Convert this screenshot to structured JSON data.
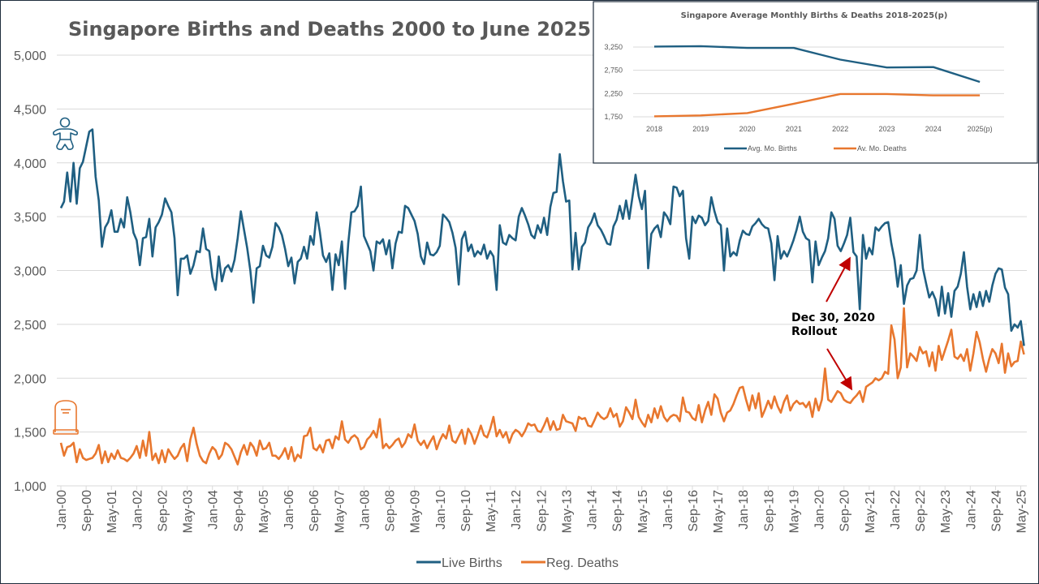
{
  "chart_data": [
    {
      "type": "line",
      "title": "Singapore Births and Deaths 2000 to June 2025",
      "xlabel": "",
      "ylabel": "",
      "ylim": [
        1000,
        5000
      ],
      "yticks": [
        "1,000",
        "1,500",
        "2,000",
        "2,500",
        "3,000",
        "3,500",
        "4,000",
        "4,500",
        "5,000"
      ],
      "ytick_values": [
        1000,
        1500,
        2000,
        2500,
        3000,
        3500,
        4000,
        4500,
        5000
      ],
      "x_start": "Jan-00",
      "x_end": "Jun-25",
      "x_frequency": "monthly",
      "xticks": [
        "Jan-00",
        "Sep-00",
        "May-01",
        "Jan-02",
        "Sep-02",
        "May-03",
        "Jan-04",
        "Sep-04",
        "May-05",
        "Jan-06",
        "Sep-06",
        "May-07",
        "Jan-08",
        "Sep-08",
        "May-09",
        "Jan-10",
        "Sep-10",
        "May-11",
        "Jan-12",
        "Sep-12",
        "May-13",
        "Jan-14",
        "Sep-14",
        "May-15",
        "Jan-16",
        "Sep-16",
        "May-17",
        "Jan-18",
        "Sep-18",
        "May-19",
        "Jan-20",
        "Sep-20",
        "May-21",
        "Jan-22",
        "Sep-22",
        "May-23",
        "Jan-24",
        "Sep-24",
        "May-25"
      ],
      "xtick_interval_months": 8,
      "grid": true,
      "legend_position": "bottom",
      "series": [
        {
          "name": "Live Births",
          "color": "#1f5f82",
          "values": [
            3580,
            3640,
            3910,
            3640,
            4000,
            3620,
            3950,
            4010,
            4150,
            4290,
            4310,
            3870,
            3650,
            3220,
            3400,
            3450,
            3560,
            3360,
            3360,
            3480,
            3400,
            3680,
            3540,
            3350,
            3280,
            3050,
            3300,
            3310,
            3480,
            3130,
            3400,
            3450,
            3520,
            3670,
            3600,
            3540,
            3300,
            2770,
            3110,
            3110,
            3140,
            2970,
            3050,
            3180,
            3170,
            3390,
            3200,
            3180,
            2940,
            2820,
            3130,
            2900,
            3020,
            3050,
            2990,
            3100,
            3300,
            3550,
            3380,
            3210,
            3000,
            2700,
            3020,
            3040,
            3230,
            3140,
            3120,
            3220,
            3440,
            3400,
            3330,
            3200,
            3040,
            3120,
            2880,
            3080,
            3110,
            3220,
            3110,
            3320,
            3240,
            3540,
            3360,
            3140,
            3080,
            3160,
            2820,
            3150,
            3050,
            3270,
            2830,
            3250,
            3540,
            3550,
            3600,
            3780,
            3320,
            3250,
            3180,
            3000,
            3270,
            3250,
            3290,
            3150,
            3280,
            3020,
            3250,
            3360,
            3350,
            3600,
            3580,
            3520,
            3460,
            3340,
            3130,
            3060,
            3260,
            3150,
            3140,
            3170,
            3230,
            3520,
            3490,
            3450,
            3350,
            3210,
            2870,
            3290,
            3360,
            3180,
            3240,
            3130,
            3180,
            3150,
            3240,
            3110,
            3180,
            3130,
            2820,
            3420,
            3260,
            3240,
            3330,
            3300,
            3280,
            3500,
            3580,
            3510,
            3430,
            3330,
            3300,
            3420,
            3350,
            3490,
            3330,
            3590,
            3720,
            3730,
            4080,
            3830,
            3640,
            3650,
            3010,
            3350,
            3010,
            3220,
            3260,
            3400,
            3450,
            3530,
            3420,
            3380,
            3320,
            3250,
            3240,
            3410,
            3470,
            3600,
            3480,
            3650,
            3480,
            3680,
            3890,
            3690,
            3570,
            3740,
            3020,
            3340,
            3390,
            3420,
            3310,
            3540,
            3500,
            3430,
            3780,
            3770,
            3690,
            3740,
            3300,
            3110,
            3500,
            3440,
            3510,
            3490,
            3420,
            3460,
            3680,
            3550,
            3450,
            3420,
            3000,
            3390,
            3130,
            3170,
            3140,
            3280,
            3370,
            3340,
            3330,
            3410,
            3440,
            3480,
            3430,
            3400,
            3390,
            3250,
            2910,
            3320,
            3110,
            3180,
            3130,
            3200,
            3280,
            3380,
            3500,
            3360,
            3300,
            3280,
            2890,
            3270,
            3050,
            3120,
            3180,
            3300,
            3540,
            3480,
            3230,
            3180,
            3250,
            3330,
            3490,
            3170,
            3130,
            2640,
            3330,
            3110,
            3210,
            3150,
            3400,
            3370,
            3410,
            3440,
            3450,
            3250,
            3100,
            2850,
            3050,
            2690,
            2860,
            2920,
            2930,
            3000,
            3330,
            3020,
            2880,
            2750,
            2800,
            2730,
            2580,
            2850,
            2600,
            2790,
            2570,
            2810,
            2850,
            2970,
            3170,
            2850,
            2640,
            2780,
            2660,
            2800,
            2670,
            2810,
            2710,
            2860,
            2970,
            3020,
            3010,
            2840,
            2780,
            2440,
            2500,
            2470,
            2530,
            2300
          ]
        },
        {
          "name": "Reg. Deaths",
          "color": "#e8772e",
          "values": [
            1400,
            1280,
            1360,
            1370,
            1400,
            1220,
            1340,
            1260,
            1240,
            1250,
            1260,
            1300,
            1380,
            1210,
            1320,
            1220,
            1300,
            1250,
            1330,
            1260,
            1250,
            1230,
            1260,
            1300,
            1370,
            1260,
            1420,
            1280,
            1500,
            1240,
            1300,
            1210,
            1330,
            1220,
            1340,
            1290,
            1250,
            1280,
            1350,
            1390,
            1230,
            1430,
            1540,
            1390,
            1280,
            1230,
            1210,
            1300,
            1360,
            1330,
            1250,
            1290,
            1400,
            1380,
            1340,
            1270,
            1200,
            1310,
            1380,
            1290,
            1400,
            1360,
            1280,
            1420,
            1340,
            1350,
            1400,
            1280,
            1280,
            1250,
            1290,
            1350,
            1250,
            1360,
            1230,
            1290,
            1260,
            1460,
            1470,
            1540,
            1350,
            1330,
            1380,
            1310,
            1420,
            1430,
            1350,
            1460,
            1430,
            1600,
            1430,
            1400,
            1450,
            1470,
            1440,
            1340,
            1360,
            1430,
            1460,
            1510,
            1450,
            1620,
            1350,
            1390,
            1350,
            1380,
            1420,
            1440,
            1360,
            1400,
            1480,
            1450,
            1570,
            1420,
            1380,
            1420,
            1350,
            1410,
            1460,
            1340,
            1420,
            1480,
            1440,
            1560,
            1420,
            1400,
            1460,
            1520,
            1390,
            1530,
            1480,
            1390,
            1470,
            1560,
            1470,
            1450,
            1530,
            1640,
            1460,
            1520,
            1450,
            1500,
            1400,
            1480,
            1520,
            1500,
            1460,
            1510,
            1580,
            1560,
            1570,
            1510,
            1500,
            1560,
            1630,
            1520,
            1600,
            1520,
            1530,
            1660,
            1600,
            1590,
            1580,
            1510,
            1640,
            1620,
            1630,
            1560,
            1550,
            1610,
            1680,
            1640,
            1620,
            1640,
            1720,
            1640,
            1670,
            1550,
            1600,
            1730,
            1680,
            1620,
            1800,
            1640,
            1590,
            1550,
            1660,
            1590,
            1720,
            1630,
            1740,
            1640,
            1600,
            1640,
            1660,
            1650,
            1600,
            1820,
            1690,
            1680,
            1630,
            1610,
            1750,
            1590,
            1700,
            1780,
            1660,
            1850,
            1810,
            1680,
            1600,
            1680,
            1700,
            1760,
            1840,
            1910,
            1920,
            1800,
            1700,
            1840,
            1720,
            1860,
            1640,
            1710,
            1790,
            1720,
            1830,
            1740,
            1680,
            1780,
            1840,
            1700,
            1760,
            1790,
            1760,
            1770,
            1730,
            1780,
            1640,
            1810,
            1700,
            1800,
            2090,
            1800,
            1780,
            1830,
            1880,
            1860,
            1800,
            1780,
            1770,
            1810,
            1840,
            1880,
            1780,
            1920,
            1940,
            1960,
            2000,
            1980,
            2000,
            2060,
            2040,
            2490,
            2360,
            2000,
            2100,
            2650,
            2100,
            2230,
            2200,
            2160,
            2290,
            2230,
            2250,
            2110,
            2240,
            2070,
            2300,
            2170,
            2260,
            2350,
            2450,
            2200,
            2180,
            2220,
            2160,
            2270,
            2070,
            2230,
            2430,
            2330,
            2180,
            2060,
            2180,
            2270,
            2230,
            2140,
            2320,
            2050,
            2230,
            2110,
            2150,
            2160,
            2340,
            2220
          ]
        }
      ],
      "annotations": [
        {
          "text_lines": [
            "Dec 30, 2020",
            "Rollout"
          ],
          "arrow_color": "#c00000",
          "points_to": "Dec-20"
        }
      ],
      "icons": [
        "baby-icon",
        "tombstone-icon"
      ]
    },
    {
      "type": "line",
      "title": "Singapore Average Monthly Births & Deaths 2018-2025(p)",
      "categories": [
        "2018",
        "2019",
        "2020",
        "2021",
        "2022",
        "2023",
        "2024",
        "2025(p)"
      ],
      "ylim": [
        1750,
        3250
      ],
      "yticks": [
        "1,750",
        "2,250",
        "2,750",
        "3,250"
      ],
      "ytick_values": [
        1750,
        2250,
        2750,
        3250
      ],
      "grid": true,
      "legend_position": "bottom",
      "series": [
        {
          "name": "Avg. Mo. Births",
          "color": "#1f5f82",
          "values": [
            3260,
            3270,
            3230,
            3230,
            2980,
            2810,
            2820,
            2500
          ]
        },
        {
          "name": "Av. Mo. Deaths",
          "color": "#e8772e",
          "values": [
            1760,
            1780,
            1830,
            2030,
            2240,
            2240,
            2210,
            2210
          ]
        }
      ]
    }
  ]
}
